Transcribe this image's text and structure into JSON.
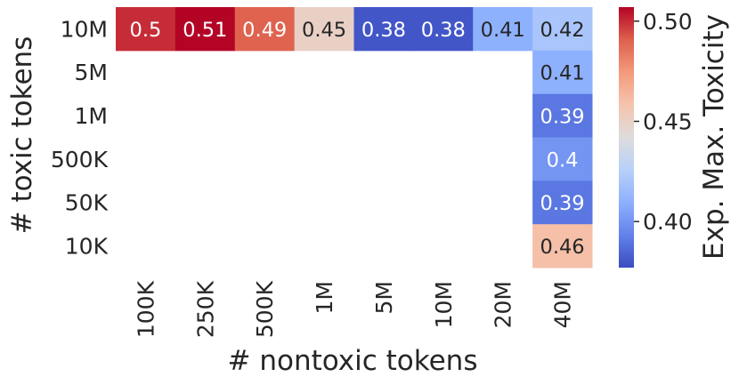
{
  "chart_data": {
    "type": "heatmap",
    "xlabel": "# nontoxic tokens",
    "ylabel": "# toxic tokens",
    "x_categories": [
      "100K",
      "250K",
      "500K",
      "1M",
      "5M",
      "10M",
      "20M",
      "40M"
    ],
    "y_categories": [
      "10M",
      "5M",
      "1M",
      "500K",
      "50K",
      "10K"
    ],
    "cells": [
      {
        "x": "100K",
        "y": "10M",
        "value": 0.5,
        "label": "0.5"
      },
      {
        "x": "250K",
        "y": "10M",
        "value": 0.51,
        "label": "0.51"
      },
      {
        "x": "500K",
        "y": "10M",
        "value": 0.49,
        "label": "0.49"
      },
      {
        "x": "1M",
        "y": "10M",
        "value": 0.45,
        "label": "0.45"
      },
      {
        "x": "5M",
        "y": "10M",
        "value": 0.38,
        "label": "0.38"
      },
      {
        "x": "10M",
        "y": "10M",
        "value": 0.38,
        "label": "0.38"
      },
      {
        "x": "20M",
        "y": "10M",
        "value": 0.41,
        "label": "0.41"
      },
      {
        "x": "40M",
        "y": "10M",
        "value": 0.42,
        "label": "0.42"
      },
      {
        "x": "40M",
        "y": "5M",
        "value": 0.41,
        "label": "0.41"
      },
      {
        "x": "40M",
        "y": "1M",
        "value": 0.39,
        "label": "0.39"
      },
      {
        "x": "40M",
        "y": "500K",
        "value": 0.4,
        "label": "0.4"
      },
      {
        "x": "40M",
        "y": "50K",
        "value": 0.39,
        "label": "0.39"
      },
      {
        "x": "40M",
        "y": "10K",
        "value": 0.46,
        "label": "0.46"
      }
    ],
    "colorbar": {
      "label": "Exp. Max. Toxicity",
      "colormap": "coolwarm",
      "range": [
        0.377,
        0.507
      ],
      "ticks": [
        0.4,
        0.45,
        0.5
      ],
      "tick_labels": [
        "0.40",
        "0.45",
        "0.50"
      ]
    }
  }
}
